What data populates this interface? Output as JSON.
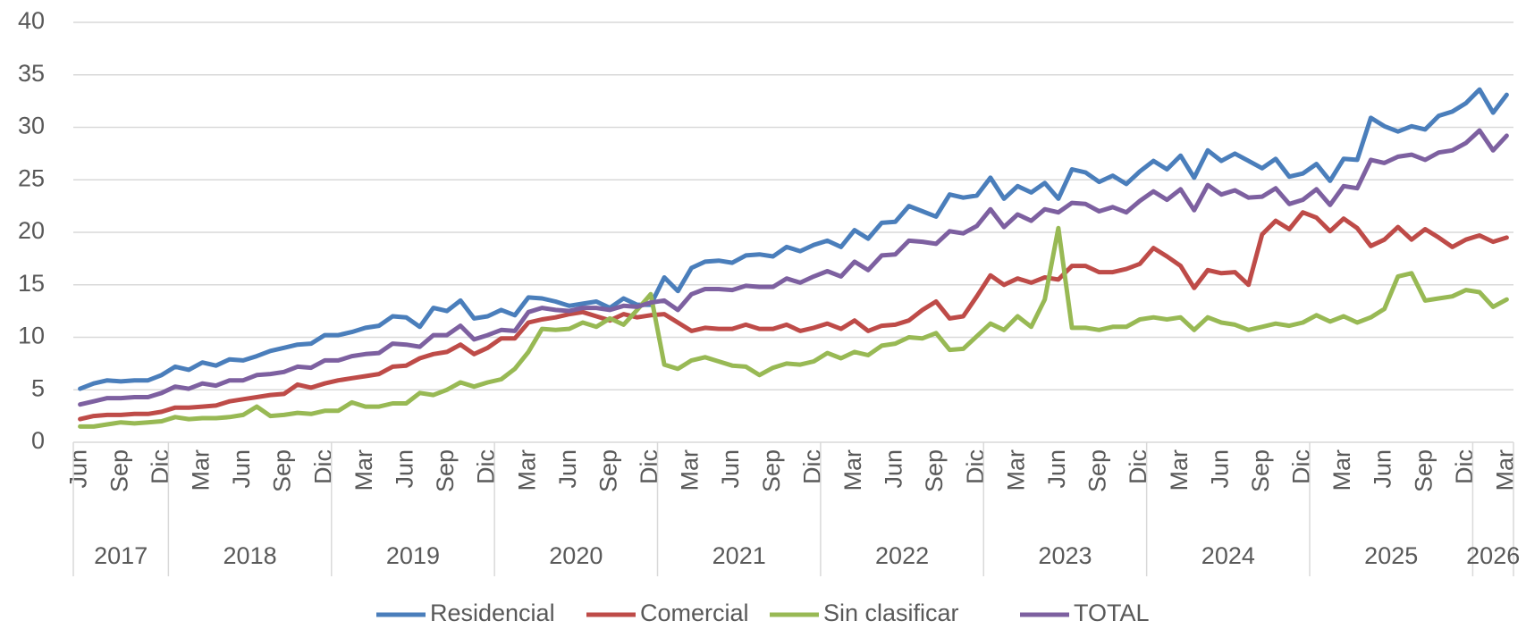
{
  "chart_data": {
    "type": "line",
    "categories": [
      "Jun",
      null,
      null,
      "Sep",
      null,
      null,
      "Dic",
      null,
      null,
      "Mar",
      null,
      null,
      "Jun",
      null,
      null,
      "Sep",
      null,
      null,
      "Dic",
      null,
      null,
      "Mar",
      null,
      null,
      "Jun",
      null,
      null,
      "Sep",
      null,
      null,
      "Dic",
      null,
      null,
      "Mar",
      null,
      null,
      "Jun",
      null,
      null,
      "Sep",
      null,
      null,
      "Dic",
      null,
      null,
      "Mar",
      null,
      null,
      "Jun",
      null,
      null,
      "Sep",
      null,
      null,
      "Dic",
      null,
      null,
      "Mar",
      null,
      null,
      "Jun",
      null,
      null,
      "Sep",
      null,
      null,
      "Dic",
      null,
      null,
      "Mar",
      null,
      null,
      "Jun",
      null,
      null,
      "Sep",
      null,
      null,
      "Dic",
      null,
      null,
      "Mar",
      null,
      null,
      "Jun",
      null,
      null,
      "Sep",
      null,
      null,
      "Dic",
      null,
      null,
      "Mar",
      null,
      null,
      "Jun",
      null,
      null,
      "Sep",
      null,
      null,
      "Dic",
      null,
      null,
      "Mar"
    ],
    "years": [
      "2017",
      "2018",
      "2019",
      "2020",
      "2021",
      "2022",
      "2023",
      "2024",
      "2025",
      "2026"
    ],
    "series": [
      {
        "name": "Residencial",
        "color": "#4a7ebb",
        "values": [
          5.1,
          5.6,
          5.9,
          5.8,
          5.9,
          5.9,
          6.4,
          7.2,
          6.9,
          7.6,
          7.3,
          7.9,
          7.8,
          8.2,
          8.7,
          9.0,
          9.3,
          9.4,
          10.2,
          10.2,
          10.5,
          10.9,
          11.1,
          12.0,
          11.9,
          11.0,
          12.8,
          12.5,
          13.5,
          11.8,
          12.0,
          12.6,
          12.1,
          13.8,
          13.7,
          13.4,
          13.0,
          13.2,
          13.4,
          12.8,
          13.7,
          13.1,
          13.1,
          15.7,
          14.4,
          16.6,
          17.2,
          17.3,
          17.1,
          17.8,
          17.9,
          17.7,
          18.6,
          18.2,
          18.8,
          19.2,
          18.6,
          20.2,
          19.4,
          20.9,
          21.0,
          22.5,
          22.0,
          21.5,
          23.6,
          23.3,
          23.5,
          25.2,
          23.2,
          24.4,
          23.8,
          24.7,
          23.2,
          26.0,
          25.7,
          24.8,
          25.4,
          24.6,
          25.8,
          26.8,
          26.0,
          27.3,
          25.2,
          27.8,
          26.8,
          27.5,
          26.8,
          26.1,
          27.0,
          25.3,
          25.6,
          26.5,
          24.9,
          27.0,
          26.9,
          30.9,
          30.1,
          29.6,
          30.1,
          29.8,
          31.1,
          31.5,
          32.3,
          33.6,
          31.4,
          33.1
        ]
      },
      {
        "name": "Comercial",
        "color": "#be4b48",
        "values": [
          2.2,
          2.5,
          2.6,
          2.6,
          2.7,
          2.7,
          2.9,
          3.3,
          3.3,
          3.4,
          3.5,
          3.9,
          4.1,
          4.3,
          4.5,
          4.6,
          5.5,
          5.2,
          5.6,
          5.9,
          6.1,
          6.3,
          6.5,
          7.2,
          7.3,
          8.0,
          8.4,
          8.6,
          9.3,
          8.4,
          9.0,
          9.9,
          9.9,
          11.4,
          11.7,
          11.9,
          12.2,
          12.4,
          12.0,
          11.6,
          12.2,
          11.9,
          12.1,
          12.2,
          11.4,
          10.6,
          10.9,
          10.8,
          10.8,
          11.2,
          10.8,
          10.8,
          11.2,
          10.6,
          10.9,
          11.3,
          10.8,
          11.6,
          10.6,
          11.1,
          11.2,
          11.6,
          12.6,
          13.4,
          11.8,
          12.0,
          13.9,
          15.9,
          15.0,
          15.6,
          15.2,
          15.7,
          15.5,
          16.8,
          16.8,
          16.2,
          16.2,
          16.5,
          17.0,
          18.5,
          17.7,
          16.8,
          14.7,
          16.4,
          16.1,
          16.2,
          15.0,
          19.8,
          21.1,
          20.3,
          21.9,
          21.4,
          20.1,
          21.3,
          20.4,
          18.7,
          19.3,
          20.5,
          19.3,
          20.3,
          19.5,
          18.6,
          19.3,
          19.7,
          19.1,
          19.5
        ]
      },
      {
        "name": "Sin clasificar",
        "color": "#98b954",
        "values": [
          1.5,
          1.5,
          1.7,
          1.9,
          1.8,
          1.9,
          2.0,
          2.4,
          2.2,
          2.3,
          2.3,
          2.4,
          2.6,
          3.4,
          2.5,
          2.6,
          2.8,
          2.7,
          3.0,
          3.0,
          3.8,
          3.4,
          3.4,
          3.7,
          3.7,
          4.7,
          4.5,
          5.0,
          5.7,
          5.3,
          5.7,
          6.0,
          7.0,
          8.6,
          10.8,
          10.7,
          10.8,
          11.4,
          11.0,
          11.8,
          11.2,
          12.6,
          14.1,
          7.4,
          7.0,
          7.8,
          8.1,
          7.7,
          7.3,
          7.2,
          6.4,
          7.1,
          7.5,
          7.4,
          7.7,
          8.5,
          8.0,
          8.6,
          8.3,
          9.2,
          9.4,
          10.0,
          9.9,
          10.4,
          8.8,
          8.9,
          10.1,
          11.3,
          10.7,
          12.0,
          11.0,
          13.6,
          20.4,
          10.9,
          10.9,
          10.7,
          11.0,
          11.0,
          11.7,
          11.9,
          11.7,
          11.9,
          10.7,
          11.9,
          11.4,
          11.2,
          10.7,
          11.0,
          11.3,
          11.1,
          11.4,
          12.1,
          11.5,
          12.0,
          11.4,
          11.9,
          12.7,
          15.8,
          16.1,
          13.5,
          13.7,
          13.9,
          14.5,
          14.3,
          12.9,
          13.6
        ]
      },
      {
        "name": "TOTAL",
        "color": "#7d60a0",
        "values": [
          3.6,
          3.9,
          4.2,
          4.2,
          4.3,
          4.3,
          4.7,
          5.3,
          5.1,
          5.6,
          5.4,
          5.9,
          5.9,
          6.4,
          6.5,
          6.7,
          7.2,
          7.1,
          7.8,
          7.8,
          8.2,
          8.4,
          8.5,
          9.4,
          9.3,
          9.1,
          10.2,
          10.2,
          11.1,
          9.8,
          10.2,
          10.7,
          10.6,
          12.4,
          12.8,
          12.6,
          12.5,
          12.8,
          12.8,
          12.6,
          13.0,
          12.9,
          13.3,
          13.5,
          12.6,
          14.1,
          14.6,
          14.6,
          14.5,
          14.9,
          14.8,
          14.8,
          15.6,
          15.2,
          15.8,
          16.3,
          15.8,
          17.2,
          16.4,
          17.8,
          17.9,
          19.2,
          19.1,
          18.9,
          20.1,
          19.9,
          20.6,
          22.2,
          20.5,
          21.7,
          21.1,
          22.2,
          21.9,
          22.8,
          22.7,
          22.0,
          22.4,
          21.9,
          23.0,
          23.9,
          23.1,
          24.1,
          22.1,
          24.5,
          23.6,
          24.0,
          23.3,
          23.4,
          24.2,
          22.7,
          23.1,
          24.1,
          22.6,
          24.4,
          24.2,
          26.9,
          26.6,
          27.2,
          27.4,
          26.9,
          27.6,
          27.8,
          28.5,
          29.7,
          27.8,
          29.2
        ]
      }
    ],
    "ylim": [
      0,
      40
    ],
    "yticks": [
      0,
      5,
      10,
      15,
      20,
      25,
      30,
      35,
      40
    ],
    "grid": true,
    "legend": "bottom"
  }
}
